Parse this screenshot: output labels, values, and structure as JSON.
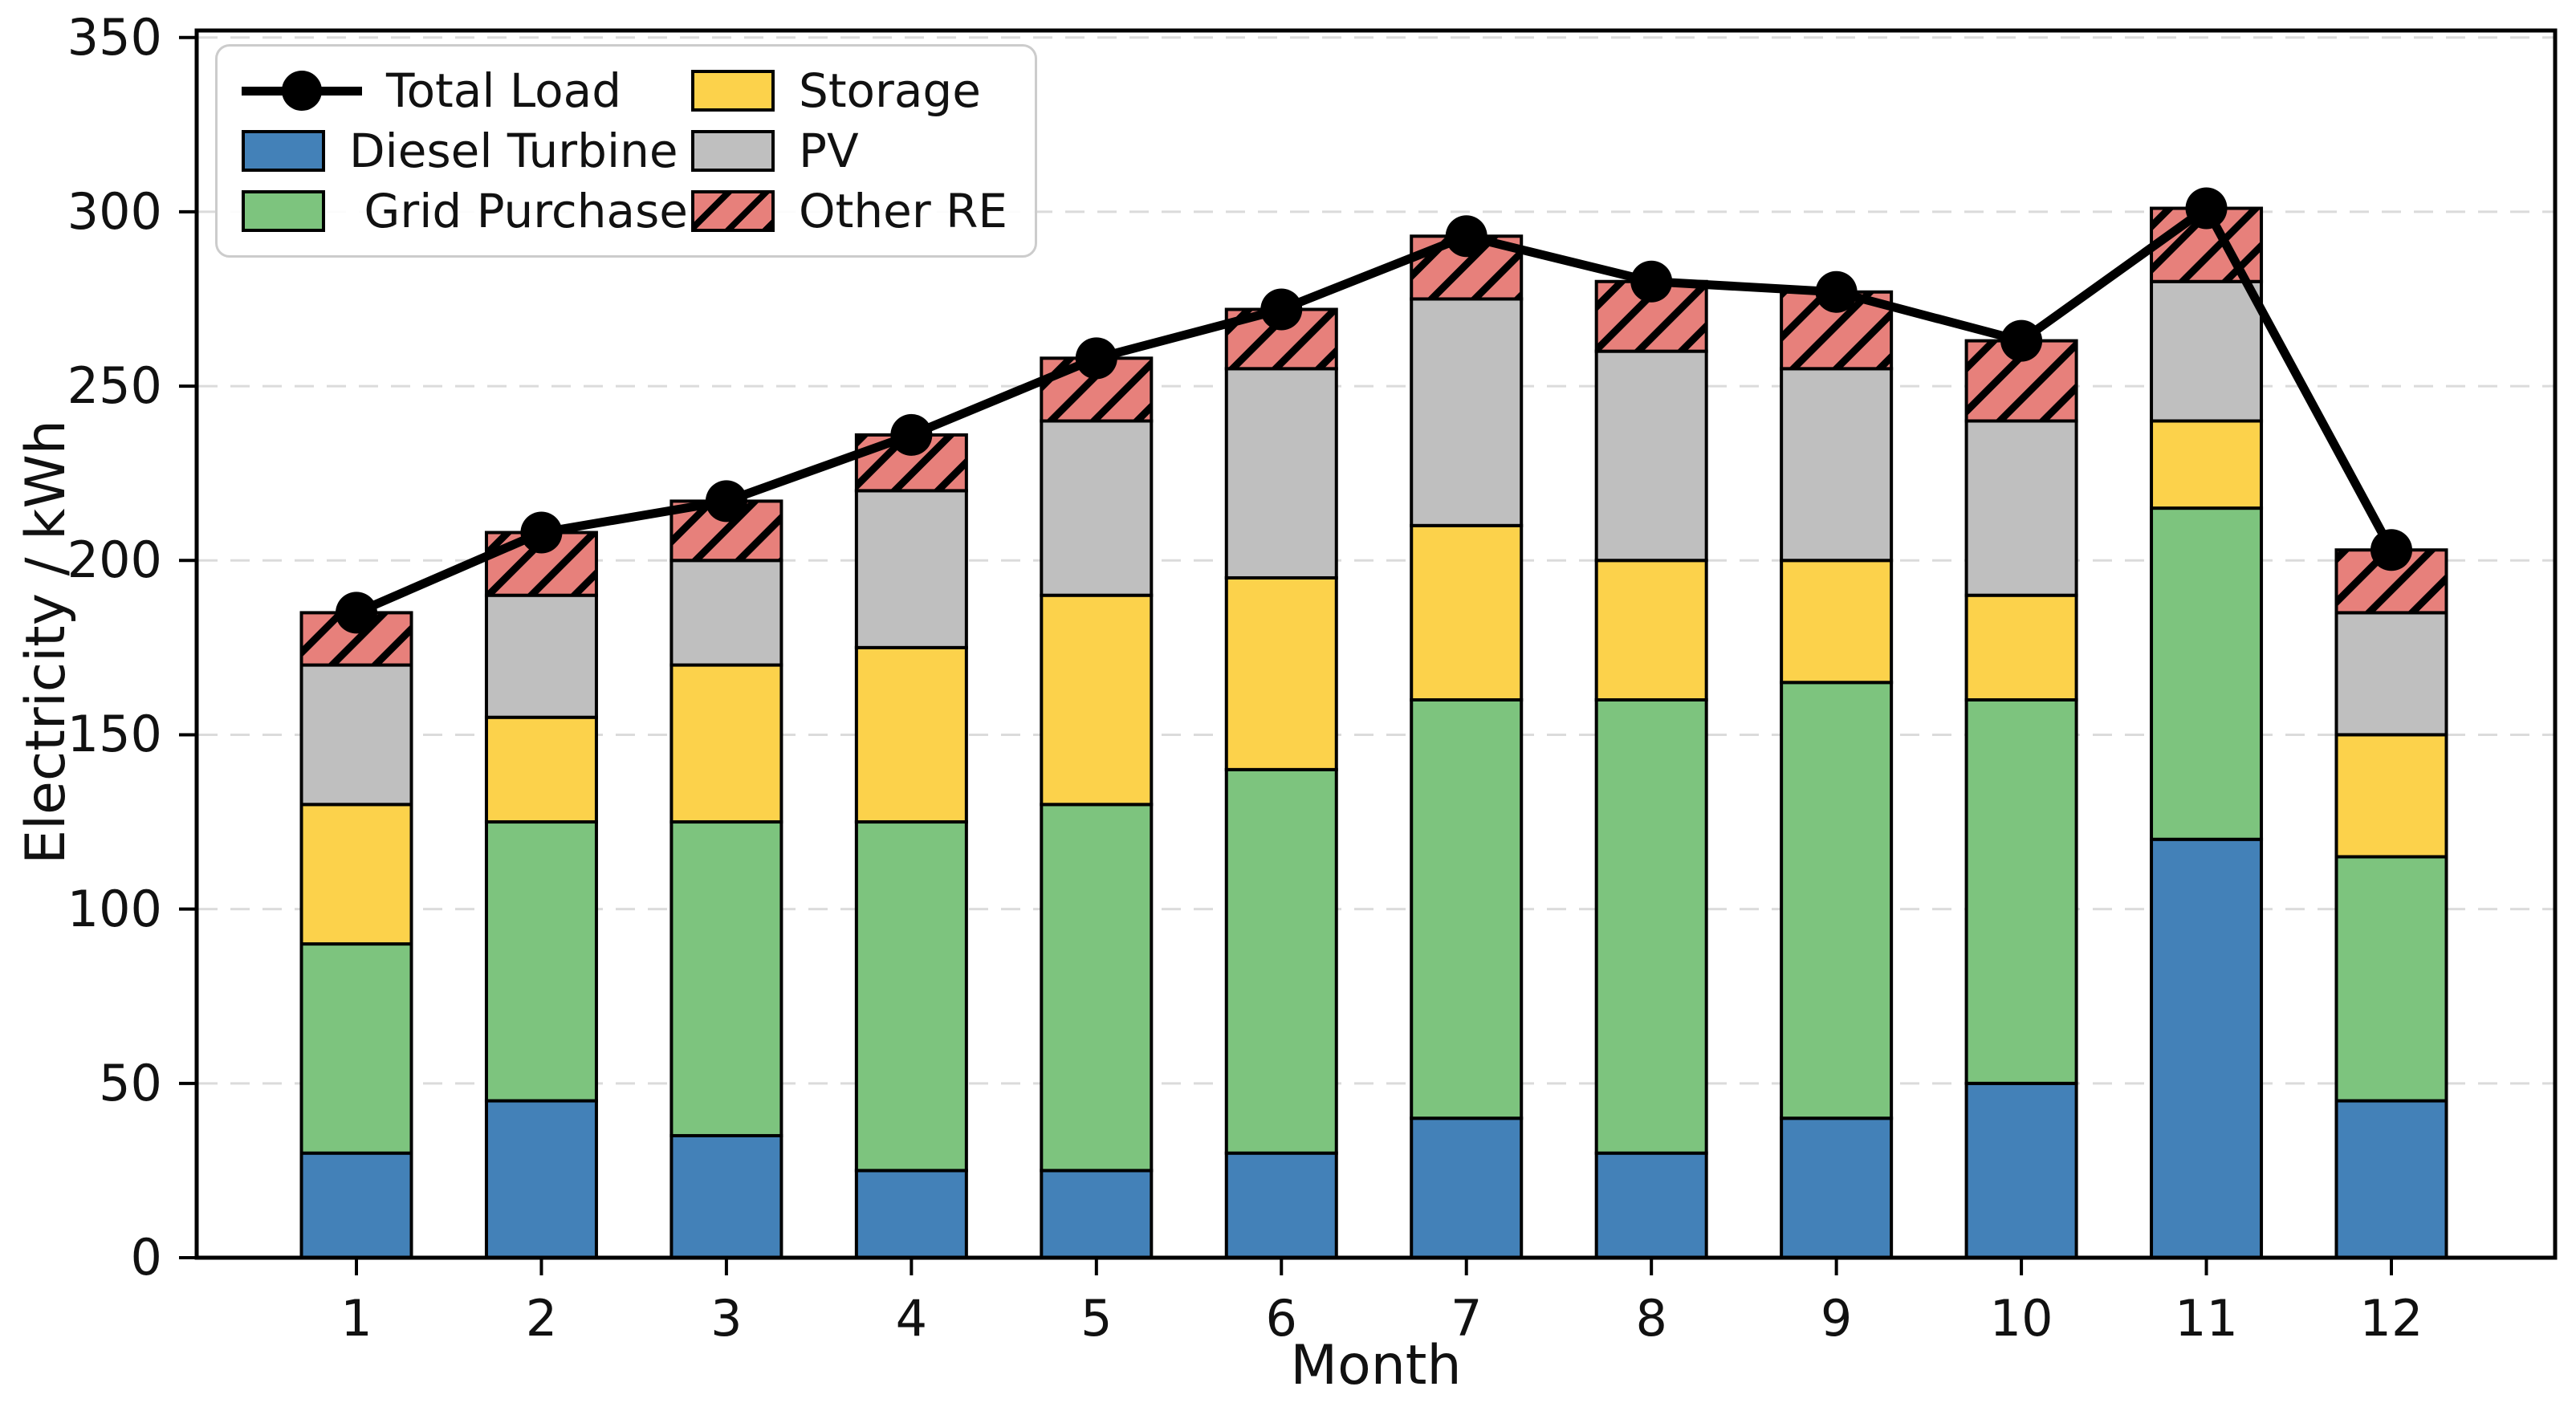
{
  "chart_data": {
    "type": "bar",
    "stacked": true,
    "title": "",
    "xlabel": "Month",
    "ylabel": "Electricity / kWh",
    "categories": [
      "1",
      "2",
      "3",
      "4",
      "5",
      "6",
      "7",
      "8",
      "9",
      "10",
      "11",
      "12"
    ],
    "ylim": [
      0,
      350
    ],
    "yticks": [
      0,
      50,
      100,
      150,
      200,
      250,
      300,
      350
    ],
    "grid": "horizontal-dashed",
    "legend_position": "upper-left-two-columns",
    "bar_edge_color": "#000000",
    "grid_color": "#DBDBDB",
    "series": [
      {
        "name": "Diesel Turbine",
        "color": "#4381B8",
        "values": [
          30,
          45,
          35,
          25,
          25,
          30,
          40,
          30,
          40,
          50,
          120,
          45
        ]
      },
      {
        "name": " Grid Purchase",
        "color": "#7DC47E",
        "values": [
          60,
          80,
          90,
          100,
          105,
          110,
          120,
          130,
          125,
          110,
          95,
          70
        ]
      },
      {
        "name": "Storage",
        "color": "#FCD24B",
        "values": [
          40,
          30,
          45,
          50,
          60,
          55,
          50,
          40,
          35,
          30,
          25,
          35
        ]
      },
      {
        "name": "PV",
        "color": "#BFBFBF",
        "values": [
          40,
          35,
          30,
          45,
          50,
          60,
          65,
          60,
          55,
          50,
          40,
          35
        ]
      },
      {
        "name": "Other RE",
        "color": "#E7807B",
        "hatch": "/",
        "values": [
          15,
          18,
          17,
          16,
          18,
          17,
          18,
          20,
          22,
          23,
          21,
          18
        ]
      }
    ],
    "line": {
      "name": "Total Load",
      "color": "#000000",
      "marker": "circle",
      "values": [
        185,
        208,
        217,
        236,
        258,
        272,
        293,
        280,
        277,
        263,
        301,
        203
      ]
    }
  }
}
